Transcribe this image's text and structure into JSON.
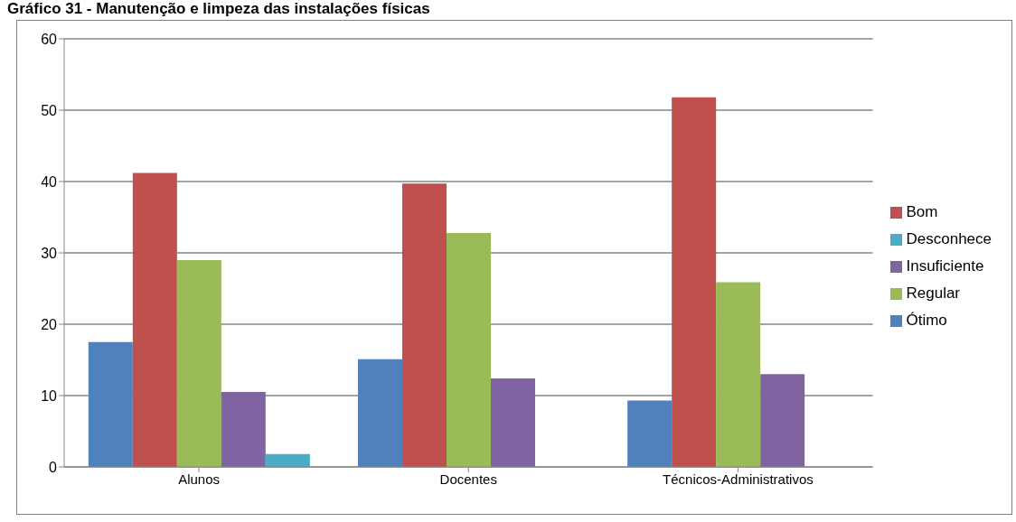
{
  "chart_data": {
    "type": "bar",
    "title": "Gráfico 31 - Manutenção e limpeza das instalações físicas",
    "categories": [
      "Alunos",
      "Docentes",
      "Técnicos-Administrativos"
    ],
    "series": [
      {
        "name": "Ótimo",
        "color": "#4f81bd",
        "values": [
          17.5,
          15.1,
          9.3
        ]
      },
      {
        "name": "Bom",
        "color": "#c0504d",
        "values": [
          41.2,
          39.7,
          51.8
        ]
      },
      {
        "name": "Regular",
        "color": "#9bbb59",
        "values": [
          29,
          32.8,
          25.9
        ]
      },
      {
        "name": "Insuficiente",
        "color": "#8064a2",
        "values": [
          10.5,
          12.4,
          13
        ]
      },
      {
        "name": "Desconhece",
        "color": "#4bacc6",
        "values": [
          1.8,
          0,
          0
        ]
      }
    ],
    "ylim": [
      0,
      60
    ],
    "yticks": [
      0,
      10,
      20,
      30,
      40,
      50,
      60
    ],
    "grid": "y",
    "legend": "right"
  }
}
